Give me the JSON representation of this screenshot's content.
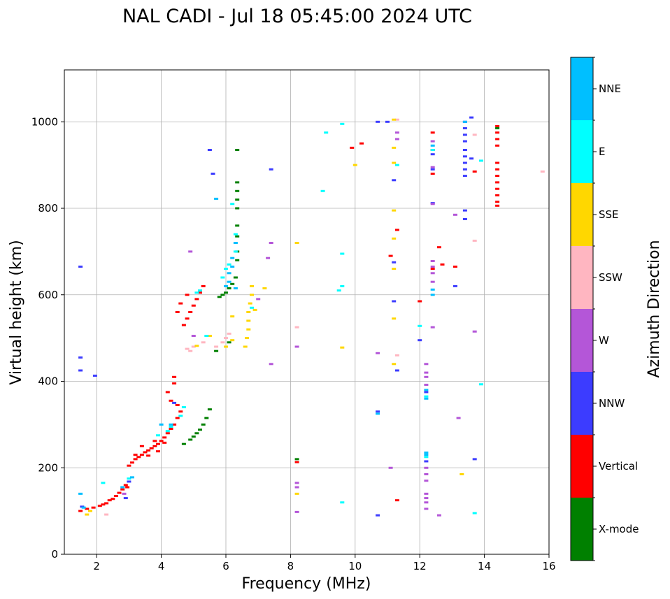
{
  "chart_data": {
    "type": "scatter",
    "title": "NAL CADI - Jul 18 05:45:00 2024 UTC",
    "xlabel": "Frequency (MHz)",
    "ylabel": "Virtual height (km)",
    "xlim": [
      1.0,
      16.0
    ],
    "ylim": [
      0,
      1120
    ],
    "xticks": [
      2,
      4,
      6,
      8,
      10,
      12,
      14,
      16
    ],
    "yticks": [
      0,
      200,
      400,
      600,
      800,
      1000
    ],
    "grid": true,
    "colorbar": {
      "label": "Azimuth Direction",
      "categories": [
        {
          "name": "X-mode",
          "color": "#008000"
        },
        {
          "name": "Vertical",
          "color": "#ff0000"
        },
        {
          "name": "NNW",
          "color": "#3c3cff"
        },
        {
          "name": "W",
          "color": "#b456d8"
        },
        {
          "name": "SSW",
          "color": "#ffb6c1"
        },
        {
          "name": "SSE",
          "color": "#ffd700"
        },
        {
          "name": "E",
          "color": "#00ffff"
        },
        {
          "name": "NNE",
          "color": "#00bfff"
        }
      ]
    },
    "series": [
      {
        "name": "Vertical",
        "points": [
          [
            1.5,
            100
          ],
          [
            1.7,
            105
          ],
          [
            1.9,
            108
          ],
          [
            2.1,
            112
          ],
          [
            2.3,
            118
          ],
          [
            2.5,
            128
          ],
          [
            2.6,
            135
          ],
          [
            2.7,
            142
          ],
          [
            2.8,
            150
          ],
          [
            2.9,
            160
          ],
          [
            2.95,
            155
          ],
          [
            2.4,
            125
          ],
          [
            2.2,
            115
          ],
          [
            3.0,
            205
          ],
          [
            3.1,
            212
          ],
          [
            3.2,
            220
          ],
          [
            3.3,
            225
          ],
          [
            3.4,
            230
          ],
          [
            3.5,
            236
          ],
          [
            3.6,
            240
          ],
          [
            3.7,
            245
          ],
          [
            3.8,
            250
          ],
          [
            3.9,
            255
          ],
          [
            4.0,
            262
          ],
          [
            4.1,
            270
          ],
          [
            4.2,
            280
          ],
          [
            4.3,
            290
          ],
          [
            4.4,
            300
          ],
          [
            4.5,
            315
          ],
          [
            4.6,
            330
          ],
          [
            4.3,
            355
          ],
          [
            4.2,
            375
          ],
          [
            4.4,
            395
          ],
          [
            4.4,
            410
          ],
          [
            3.4,
            250
          ],
          [
            3.6,
            228
          ],
          [
            3.9,
            238
          ],
          [
            4.1,
            258
          ],
          [
            3.2,
            230
          ],
          [
            3.8,
            262
          ],
          [
            4.5,
            345
          ],
          [
            4.7,
            530
          ],
          [
            4.8,
            545
          ],
          [
            4.9,
            560
          ],
          [
            5.0,
            575
          ],
          [
            5.1,
            590
          ],
          [
            5.2,
            605
          ],
          [
            4.6,
            580
          ],
          [
            4.5,
            560
          ],
          [
            5.3,
            620
          ],
          [
            4.8,
            600
          ],
          [
            12.4,
            975
          ],
          [
            12.4,
            935
          ],
          [
            12.4,
            880
          ],
          [
            12.6,
            710
          ],
          [
            12.4,
            660
          ],
          [
            12.7,
            670
          ],
          [
            13.1,
            665
          ],
          [
            11.1,
            690
          ],
          [
            11.3,
            750
          ],
          [
            10.2,
            950
          ],
          [
            9.9,
            940
          ],
          [
            13.7,
            885
          ],
          [
            12.0,
            585
          ],
          [
            11.3,
            125
          ],
          [
            8.2,
            213
          ],
          [
            14.4,
            990
          ],
          [
            14.4,
            975
          ],
          [
            14.4,
            960
          ],
          [
            14.4,
            945
          ],
          [
            14.4,
            905
          ],
          [
            14.4,
            890
          ],
          [
            14.4,
            875
          ],
          [
            14.4,
            860
          ],
          [
            14.4,
            845
          ],
          [
            14.4,
            830
          ],
          [
            14.4,
            815
          ],
          [
            14.4,
            806
          ]
        ]
      },
      {
        "name": "X-mode",
        "points": [
          [
            4.7,
            255
          ],
          [
            4.9,
            265
          ],
          [
            5.0,
            272
          ],
          [
            5.1,
            280
          ],
          [
            5.2,
            288
          ],
          [
            5.3,
            300
          ],
          [
            5.4,
            315
          ],
          [
            5.5,
            335
          ],
          [
            5.8,
            595
          ],
          [
            5.9,
            600
          ],
          [
            6.0,
            605
          ],
          [
            6.1,
            615
          ],
          [
            6.2,
            625
          ],
          [
            6.3,
            640
          ],
          [
            5.7,
            470
          ],
          [
            6.1,
            490
          ],
          [
            6.35,
            680
          ],
          [
            6.35,
            700
          ],
          [
            6.35,
            735
          ],
          [
            6.35,
            760
          ],
          [
            6.35,
            800
          ],
          [
            6.35,
            820
          ],
          [
            6.35,
            840
          ],
          [
            6.35,
            860
          ],
          [
            6.35,
            935
          ],
          [
            8.2,
            220
          ],
          [
            14.4,
            985
          ]
        ]
      },
      {
        "name": "NNW",
        "points": [
          [
            1.5,
            665
          ],
          [
            1.5,
            455
          ],
          [
            1.5,
            425
          ],
          [
            1.55,
            110
          ],
          [
            1.95,
            413
          ],
          [
            2.9,
            130
          ],
          [
            3.0,
            168
          ],
          [
            4.4,
            350
          ],
          [
            5.5,
            935
          ],
          [
            5.6,
            880
          ],
          [
            7.4,
            890
          ],
          [
            10.7,
            1000
          ],
          [
            11.2,
            675
          ],
          [
            11.2,
            585
          ],
          [
            11.3,
            425
          ],
          [
            11.2,
            865
          ],
          [
            10.7,
            90
          ],
          [
            10.7,
            330
          ],
          [
            11.0,
            1000
          ],
          [
            12.4,
            925
          ],
          [
            12.4,
            890
          ],
          [
            12.2,
            215
          ],
          [
            12.2,
            375
          ],
          [
            12.4,
            812
          ],
          [
            13.4,
            1000
          ],
          [
            13.4,
            985
          ],
          [
            13.4,
            970
          ],
          [
            13.4,
            955
          ],
          [
            13.4,
            935
          ],
          [
            13.4,
            920
          ],
          [
            13.4,
            905
          ],
          [
            13.4,
            890
          ],
          [
            13.4,
            875
          ],
          [
            13.4,
            795
          ],
          [
            13.4,
            775
          ],
          [
            13.6,
            1010
          ],
          [
            13.6,
            915
          ],
          [
            13.7,
            220
          ],
          [
            13.1,
            620
          ],
          [
            12.0,
            495
          ]
        ]
      },
      {
        "name": "W",
        "points": [
          [
            2.85,
            140
          ],
          [
            5.0,
            505
          ],
          [
            4.9,
            700
          ],
          [
            7.0,
            590
          ],
          [
            7.4,
            720
          ],
          [
            7.4,
            440
          ],
          [
            8.2,
            480
          ],
          [
            8.2,
            165
          ],
          [
            8.2,
            155
          ],
          [
            8.2,
            98
          ],
          [
            10.7,
            465
          ],
          [
            11.1,
            200
          ],
          [
            11.3,
            975
          ],
          [
            11.3,
            960
          ],
          [
            12.2,
            440
          ],
          [
            12.2,
            420
          ],
          [
            12.2,
            410
          ],
          [
            12.2,
            392
          ],
          [
            12.2,
            200
          ],
          [
            12.2,
            185
          ],
          [
            12.2,
            170
          ],
          [
            12.2,
            140
          ],
          [
            12.2,
            130
          ],
          [
            12.2,
            120
          ],
          [
            12.2,
            105
          ],
          [
            12.4,
            525
          ],
          [
            12.4,
            678
          ],
          [
            12.4,
            665
          ],
          [
            12.4,
            650
          ],
          [
            12.4,
            630
          ],
          [
            12.4,
            955
          ],
          [
            12.4,
            895
          ],
          [
            12.4,
            810
          ],
          [
            12.6,
            90
          ],
          [
            13.1,
            785
          ],
          [
            13.2,
            315
          ],
          [
            13.7,
            515
          ],
          [
            7.3,
            685
          ]
        ]
      },
      {
        "name": "SSW",
        "points": [
          [
            2.3,
            92
          ],
          [
            4.8,
            475
          ],
          [
            5.0,
            480
          ],
          [
            5.3,
            490
          ],
          [
            5.7,
            480
          ],
          [
            5.9,
            490
          ],
          [
            6.0,
            500
          ],
          [
            6.1,
            510
          ],
          [
            8.2,
            525
          ],
          [
            11.3,
            1005
          ],
          [
            11.3,
            460
          ],
          [
            13.7,
            970
          ],
          [
            13.7,
            725
          ],
          [
            15.8,
            885
          ],
          [
            4.9,
            470
          ]
        ]
      },
      {
        "name": "SSE",
        "points": [
          [
            1.7,
            92
          ],
          [
            1.8,
            100
          ],
          [
            5.5,
            505
          ],
          [
            5.1,
            482
          ],
          [
            6.0,
            480
          ],
          [
            6.2,
            495
          ],
          [
            6.6,
            480
          ],
          [
            6.65,
            500
          ],
          [
            6.7,
            520
          ],
          [
            6.7,
            540
          ],
          [
            6.7,
            560
          ],
          [
            6.75,
            580
          ],
          [
            6.8,
            600
          ],
          [
            6.8,
            620
          ],
          [
            7.2,
            615
          ],
          [
            6.2,
            550
          ],
          [
            8.2,
            720
          ],
          [
            8.2,
            140
          ],
          [
            10.0,
            900
          ],
          [
            11.2,
            1005
          ],
          [
            11.2,
            940
          ],
          [
            11.2,
            905
          ],
          [
            11.2,
            795
          ],
          [
            11.2,
            730
          ],
          [
            11.2,
            660
          ],
          [
            11.2,
            545
          ],
          [
            11.2,
            440
          ],
          [
            13.3,
            185
          ],
          [
            9.6,
            478
          ],
          [
            6.9,
            565
          ]
        ]
      },
      {
        "name": "E",
        "points": [
          [
            2.2,
            165
          ],
          [
            3.0,
            175
          ],
          [
            3.9,
            275
          ],
          [
            4.2,
            285
          ],
          [
            4.6,
            320
          ],
          [
            4.7,
            340
          ],
          [
            4.3,
            295
          ],
          [
            5.1,
            605
          ],
          [
            5.2,
            610
          ],
          [
            6.0,
            660
          ],
          [
            6.1,
            670
          ],
          [
            5.9,
            640
          ],
          [
            5.4,
            505
          ],
          [
            6.3,
            700
          ],
          [
            6.3,
            740
          ],
          [
            6.2,
            810
          ],
          [
            6.8,
            570
          ],
          [
            9.0,
            840
          ],
          [
            9.1,
            975
          ],
          [
            9.6,
            995
          ],
          [
            9.6,
            695
          ],
          [
            9.6,
            620
          ],
          [
            9.5,
            610
          ],
          [
            9.6,
            120
          ],
          [
            11.3,
            900
          ],
          [
            12.0,
            528
          ],
          [
            12.4,
            935
          ],
          [
            13.9,
            910
          ],
          [
            13.9,
            393
          ],
          [
            13.7,
            95
          ],
          [
            12.2,
            225
          ],
          [
            12.2,
            365
          ]
        ]
      },
      {
        "name": "NNE",
        "points": [
          [
            1.5,
            140
          ],
          [
            1.6,
            108
          ],
          [
            2.8,
            155
          ],
          [
            3.1,
            178
          ],
          [
            4.0,
            300
          ],
          [
            4.3,
            300
          ],
          [
            6.1,
            650
          ],
          [
            6.2,
            665
          ],
          [
            6.2,
            685
          ],
          [
            6.3,
            720
          ],
          [
            6.1,
            630
          ],
          [
            5.7,
            822
          ],
          [
            6.3,
            615
          ],
          [
            6.0,
            620
          ],
          [
            10.7,
            325
          ],
          [
            12.4,
            612
          ],
          [
            12.4,
            600
          ],
          [
            12.4,
            945
          ],
          [
            12.2,
            235
          ],
          [
            12.2,
            230
          ],
          [
            12.2,
            360
          ],
          [
            12.2,
            380
          ],
          [
            13.4,
            1000
          ]
        ]
      }
    ]
  }
}
